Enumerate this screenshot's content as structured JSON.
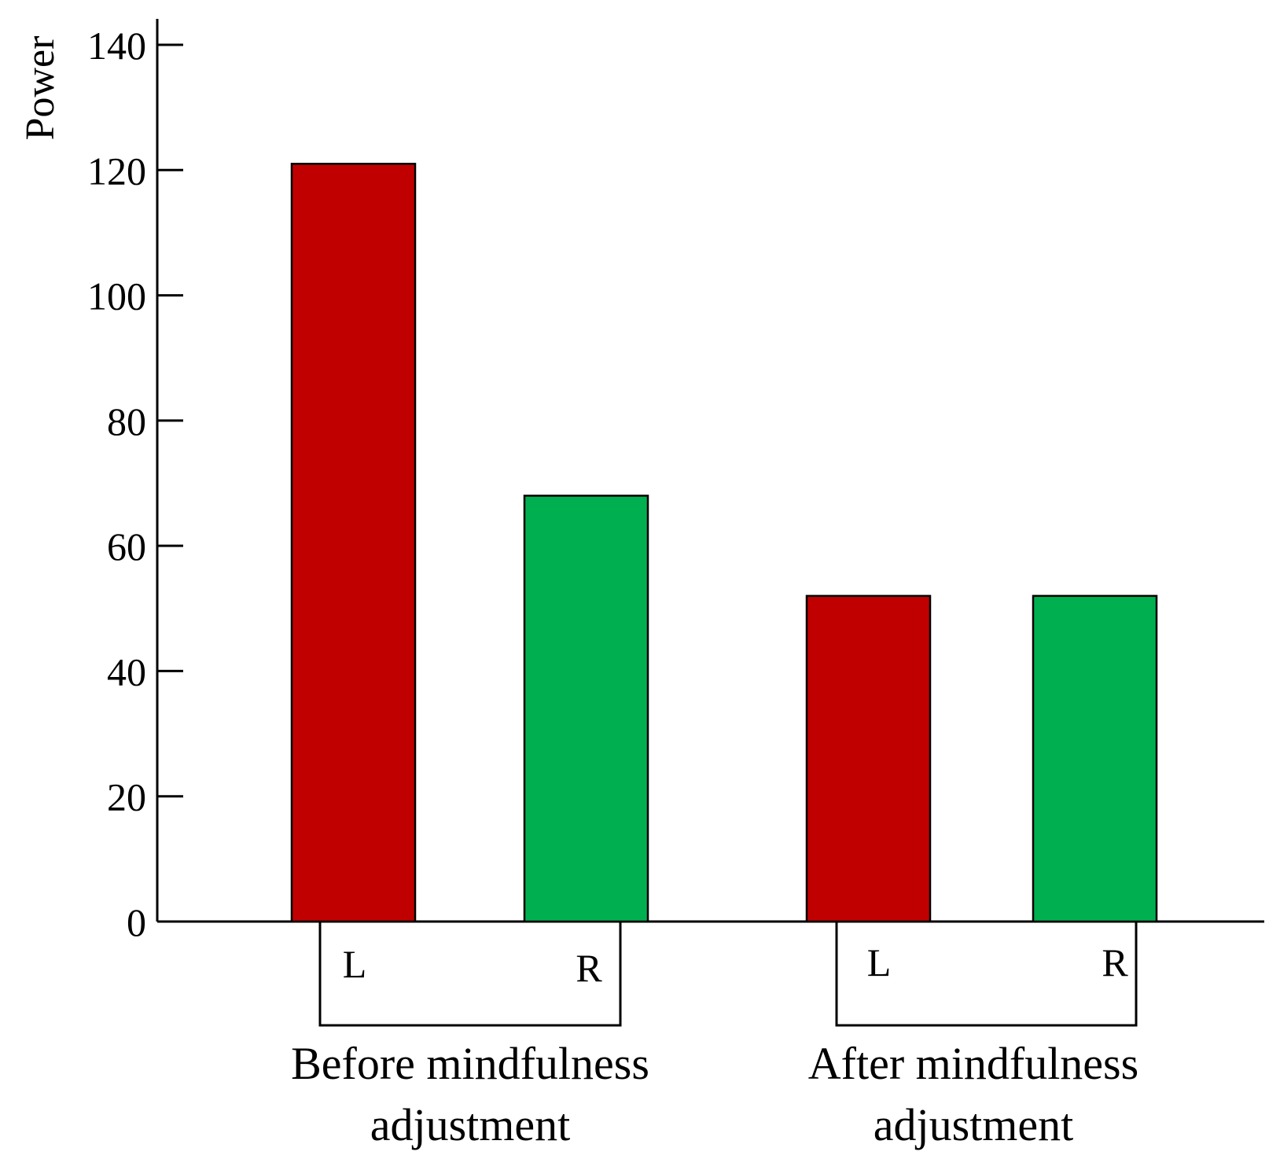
{
  "chart_data": {
    "type": "bar",
    "title": "",
    "xlabel": "",
    "ylabel": "Power",
    "ylim": [
      0,
      140
    ],
    "yticks": [
      0,
      20,
      40,
      60,
      80,
      100,
      120,
      140
    ],
    "grid": false,
    "legend": "none",
    "groups": [
      {
        "label_lines": [
          "Before mindfulness",
          "adjustment"
        ],
        "bars": [
          {
            "label": "L",
            "value": 121,
            "color": "#c00000"
          },
          {
            "label": "R",
            "value": 68,
            "color": "#00b050"
          }
        ]
      },
      {
        "label_lines": [
          "After mindfulness",
          "adjustment"
        ],
        "bars": [
          {
            "label": "L",
            "value": 52,
            "color": "#c00000"
          },
          {
            "label": "R",
            "value": 52,
            "color": "#00b050"
          }
        ]
      }
    ]
  }
}
